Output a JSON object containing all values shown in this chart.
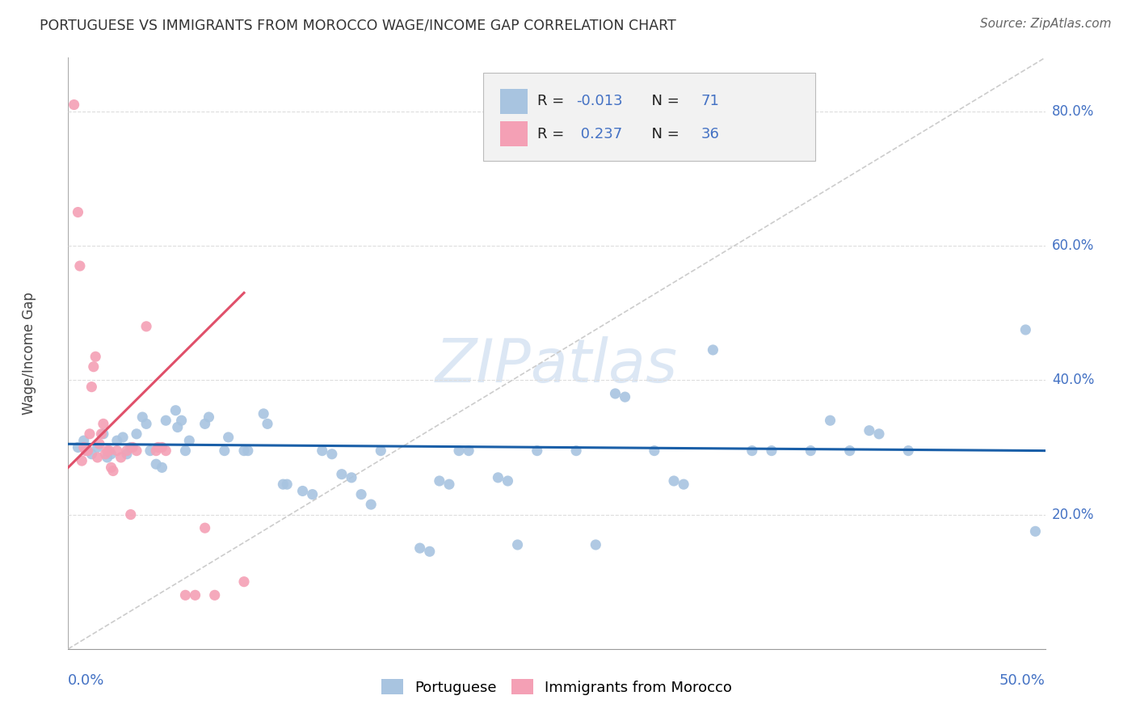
{
  "title": "PORTUGUESE VS IMMIGRANTS FROM MOROCCO WAGE/INCOME GAP CORRELATION CHART",
  "source": "Source: ZipAtlas.com",
  "ylabel": "Wage/Income Gap",
  "legend_label_blue": "Portuguese",
  "legend_label_pink": "Immigrants from Morocco",
  "blue_R": -0.013,
  "blue_N": 71,
  "pink_R": 0.237,
  "pink_N": 36,
  "blue_color": "#a8c4e0",
  "pink_color": "#f4a0b5",
  "blue_line_color": "#1a5fa8",
  "pink_line_color": "#e0506a",
  "xmin": 0.0,
  "xmax": 0.5,
  "ymin": 0.0,
  "ymax": 88.0,
  "right_ytick_vals": [
    20.0,
    40.0,
    60.0,
    80.0
  ],
  "right_ytick_labels": [
    "20.0%",
    "40.0%",
    "60.0%",
    "80.0%"
  ],
  "blue_trend_y0": 30.5,
  "blue_trend_y1": 29.5,
  "pink_trend_x0": 0.0,
  "pink_trend_x1": 0.09,
  "pink_trend_y0": 27.0,
  "pink_trend_y1": 53.0,
  "blue_points_x": [
    0.005,
    0.008,
    0.01,
    0.012,
    0.015,
    0.018,
    0.02,
    0.022,
    0.025,
    0.028,
    0.03,
    0.032,
    0.035,
    0.038,
    0.04,
    0.042,
    0.045,
    0.048,
    0.05,
    0.055,
    0.056,
    0.058,
    0.06,
    0.062,
    0.07,
    0.072,
    0.08,
    0.082,
    0.09,
    0.092,
    0.1,
    0.102,
    0.11,
    0.112,
    0.12,
    0.125,
    0.13,
    0.135,
    0.14,
    0.145,
    0.15,
    0.155,
    0.16,
    0.18,
    0.185,
    0.19,
    0.195,
    0.2,
    0.205,
    0.22,
    0.225,
    0.23,
    0.24,
    0.26,
    0.27,
    0.28,
    0.285,
    0.3,
    0.31,
    0.315,
    0.33,
    0.35,
    0.36,
    0.38,
    0.39,
    0.4,
    0.41,
    0.415,
    0.43,
    0.49,
    0.495
  ],
  "blue_points_y": [
    30.0,
    31.0,
    29.5,
    29.0,
    30.0,
    32.0,
    28.5,
    29.0,
    31.0,
    31.5,
    29.0,
    30.0,
    32.0,
    34.5,
    33.5,
    29.5,
    27.5,
    27.0,
    34.0,
    35.5,
    33.0,
    34.0,
    29.5,
    31.0,
    33.5,
    34.5,
    29.5,
    31.5,
    29.5,
    29.5,
    35.0,
    33.5,
    24.5,
    24.5,
    23.5,
    23.0,
    29.5,
    29.0,
    26.0,
    25.5,
    23.0,
    21.5,
    29.5,
    15.0,
    14.5,
    25.0,
    24.5,
    29.5,
    29.5,
    25.5,
    25.0,
    15.5,
    29.5,
    29.5,
    15.5,
    38.0,
    37.5,
    29.5,
    25.0,
    24.5,
    44.5,
    29.5,
    29.5,
    29.5,
    34.0,
    29.5,
    32.5,
    32.0,
    29.5,
    47.5,
    17.5
  ],
  "pink_points_x": [
    0.003,
    0.005,
    0.006,
    0.007,
    0.008,
    0.009,
    0.01,
    0.011,
    0.012,
    0.013,
    0.014,
    0.015,
    0.016,
    0.017,
    0.018,
    0.019,
    0.02,
    0.021,
    0.022,
    0.023,
    0.025,
    0.027,
    0.03,
    0.032,
    0.033,
    0.035,
    0.04,
    0.045,
    0.046,
    0.048,
    0.05,
    0.06,
    0.065,
    0.07,
    0.075,
    0.09
  ],
  "pink_points_y": [
    81.0,
    65.0,
    57.0,
    28.0,
    30.0,
    29.5,
    29.5,
    32.0,
    39.0,
    42.0,
    43.5,
    28.5,
    30.5,
    32.0,
    33.5,
    29.0,
    29.5,
    29.5,
    27.0,
    26.5,
    29.5,
    28.5,
    29.5,
    20.0,
    30.0,
    29.5,
    48.0,
    29.5,
    30.0,
    30.0,
    29.5,
    8.0,
    8.0,
    18.0,
    8.0,
    10.0
  ]
}
